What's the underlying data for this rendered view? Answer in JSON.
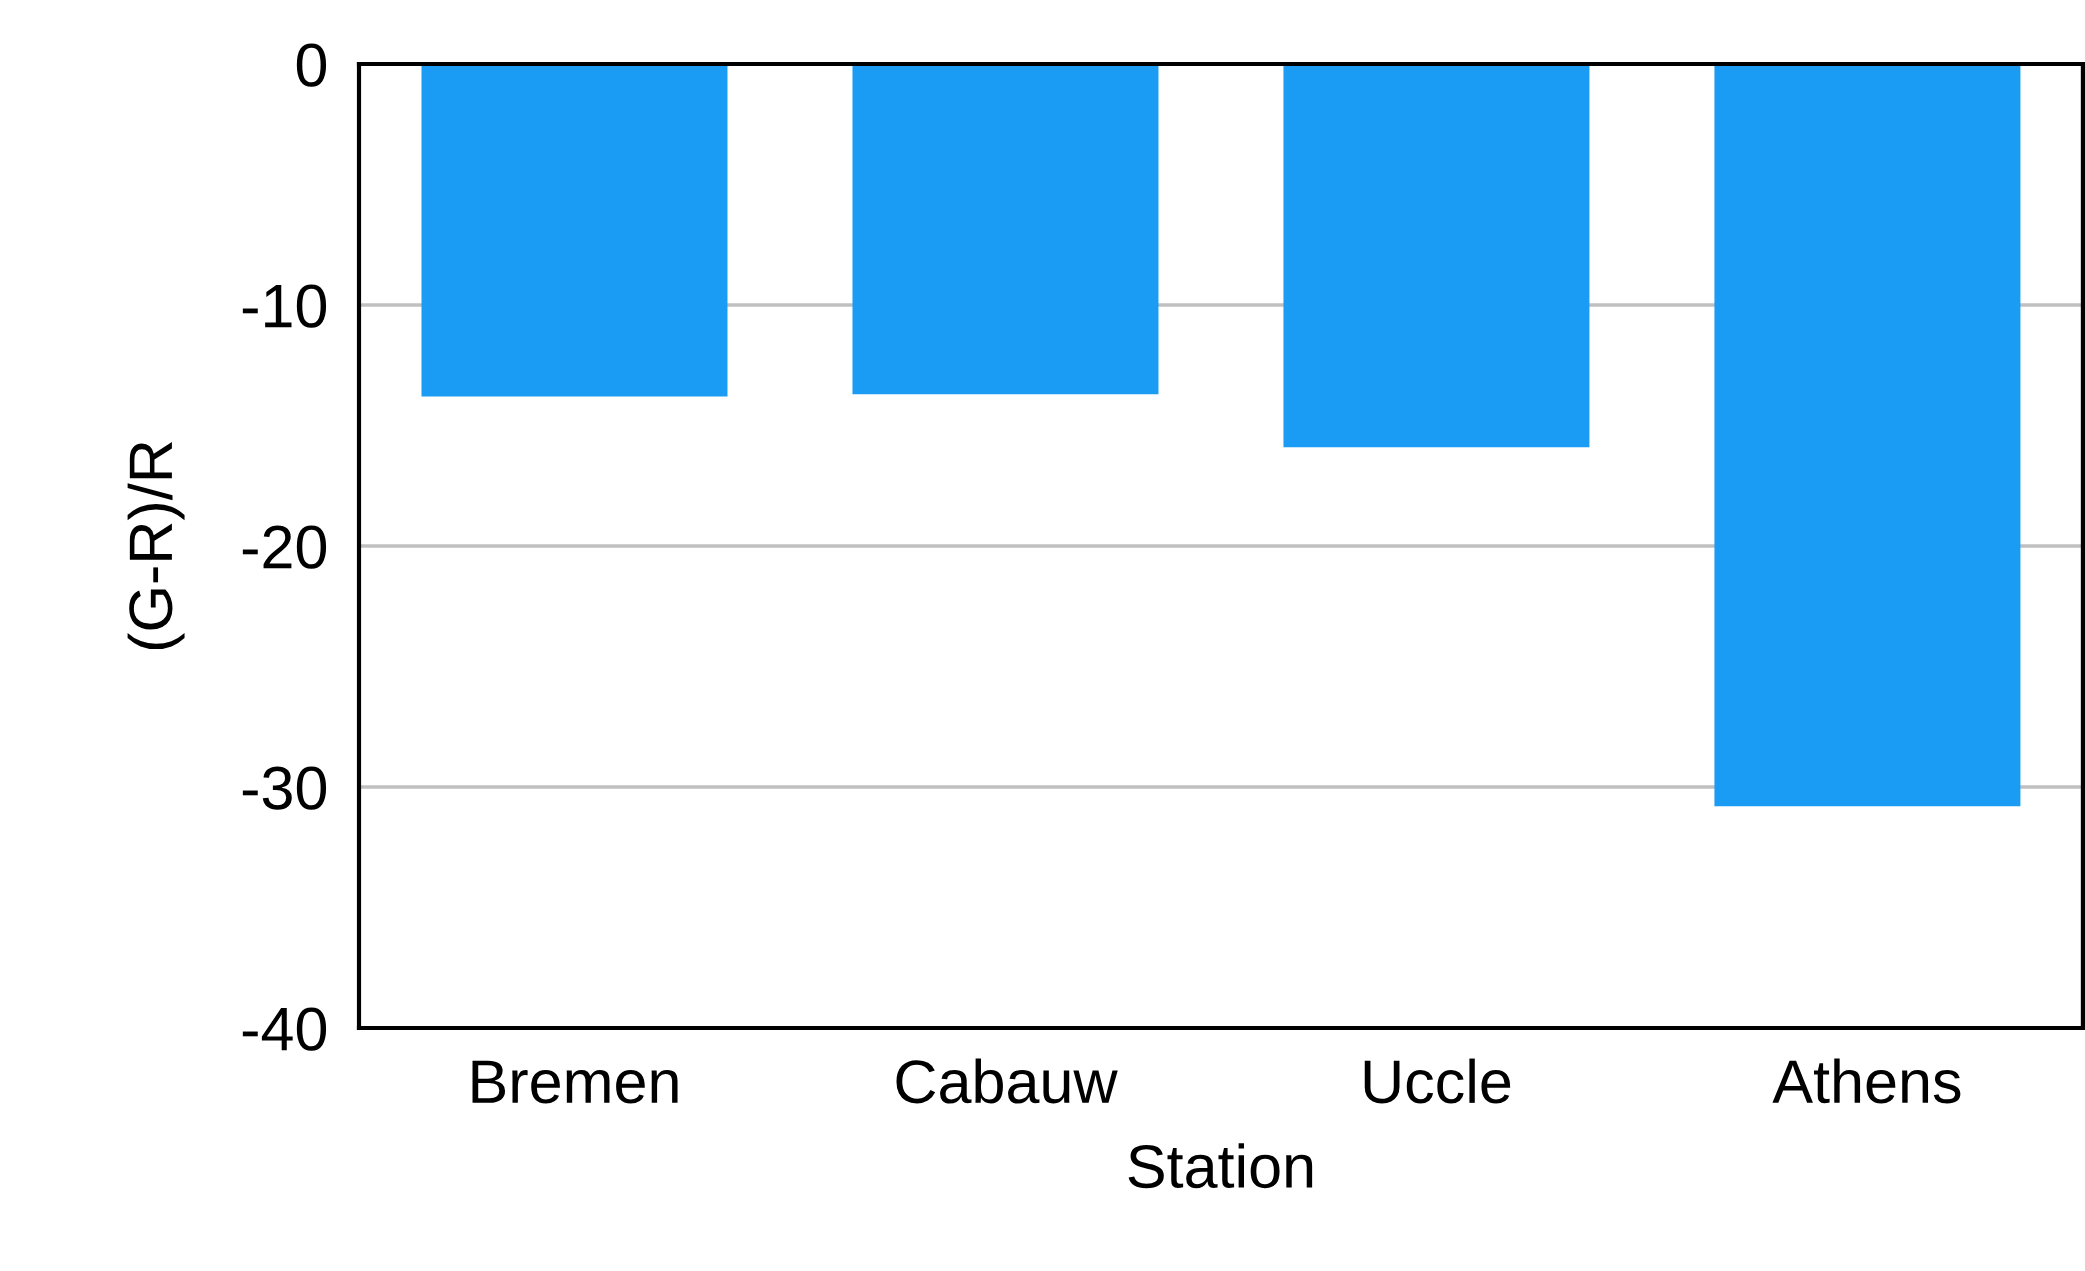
{
  "chart_data": {
    "type": "bar",
    "xlabel": "Station",
    "ylabel": "(G-R)/R",
    "categories": [
      "Bremen",
      "Cabauw",
      "Uccle",
      "Athens"
    ],
    "values": [
      -13.8,
      -13.7,
      -15.9,
      -30.8
    ],
    "color": "#1a9cf5",
    "ylim": [
      -40,
      0
    ],
    "yticks": [
      -40,
      -30,
      -20,
      -10,
      0
    ],
    "grid": "y"
  }
}
